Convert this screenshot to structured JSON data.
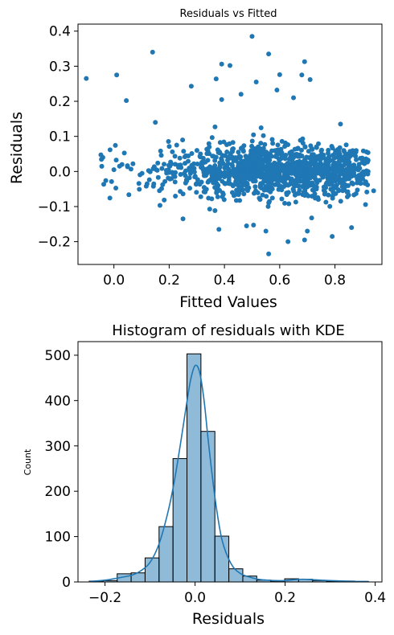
{
  "chart_data": [
    {
      "type": "scatter",
      "title": "Residuals vs Fitted",
      "xlabel": "Fitted Values",
      "ylabel": "Residuals",
      "xlim": [
        -0.13,
        0.97
      ],
      "ylim": [
        -0.265,
        0.42
      ],
      "xticks": [
        0.0,
        0.2,
        0.4,
        0.6,
        0.8
      ],
      "xtick_labels": [
        "0.0",
        "0.2",
        "0.4",
        "0.6",
        "0.8"
      ],
      "yticks": [
        -0.2,
        -0.1,
        0.0,
        0.1,
        0.2,
        0.3,
        0.4
      ],
      "ytick_labels": [
        "−0.2",
        "−0.1",
        "0.0",
        "0.1",
        "0.2",
        "0.3",
        "0.4"
      ],
      "grid": false,
      "color": "#1f77b4",
      "notable_points": [
        {
          "x": -0.1,
          "y": 0.265
        },
        {
          "x": 0.01,
          "y": 0.275
        },
        {
          "x": 0.045,
          "y": 0.202
        },
        {
          "x": 0.14,
          "y": 0.34
        },
        {
          "x": 0.28,
          "y": 0.243
        },
        {
          "x": 0.37,
          "y": 0.264
        },
        {
          "x": 0.39,
          "y": 0.306
        },
        {
          "x": 0.42,
          "y": 0.302
        },
        {
          "x": 0.5,
          "y": 0.385
        },
        {
          "x": 0.56,
          "y": 0.335
        },
        {
          "x": 0.69,
          "y": 0.313
        },
        {
          "x": 0.68,
          "y": 0.275
        },
        {
          "x": 0.71,
          "y": 0.262
        },
        {
          "x": 0.6,
          "y": 0.276
        },
        {
          "x": 0.46,
          "y": 0.22
        },
        {
          "x": 0.515,
          "y": 0.255
        },
        {
          "x": 0.59,
          "y": 0.232
        },
        {
          "x": 0.65,
          "y": 0.21
        },
        {
          "x": 0.39,
          "y": 0.205
        },
        {
          "x": 0.15,
          "y": 0.14
        },
        {
          "x": 0.82,
          "y": 0.135
        },
        {
          "x": 0.56,
          "y": -0.235
        },
        {
          "x": 0.63,
          "y": -0.2
        },
        {
          "x": 0.69,
          "y": -0.195
        },
        {
          "x": 0.55,
          "y": -0.17
        },
        {
          "x": 0.7,
          "y": -0.17
        },
        {
          "x": 0.38,
          "y": -0.165
        },
        {
          "x": 0.79,
          "y": -0.185
        },
        {
          "x": 0.86,
          "y": -0.16
        },
        {
          "x": 0.48,
          "y": -0.155
        },
        {
          "x": 0.25,
          "y": -0.135
        },
        {
          "x": 0.12,
          "y": -0.035
        },
        {
          "x": -0.04,
          "y": 0.04
        },
        {
          "x": 0.0,
          "y": 0.005
        },
        {
          "x": 0.94,
          "y": -0.055
        },
        {
          "x": 0.92,
          "y": 0.0
        }
      ],
      "cloud": {
        "n": 1240,
        "x_center": 0.62,
        "x_spread": 0.2,
        "x_range": [
          -0.08,
          0.92
        ],
        "y_sd": 0.038
      }
    },
    {
      "type": "bar",
      "subtype": "histogram_with_kde",
      "title": "Histogram of residuals with KDE",
      "xlabel": "Residuals",
      "ylabel": "Count",
      "xlim": [
        -0.26,
        0.415
      ],
      "ylim": [
        0,
        530
      ],
      "xticks": [
        -0.2,
        0.0,
        0.2,
        0.4
      ],
      "xtick_labels": [
        "−0.2",
        "0.0",
        "0.2",
        "0.4"
      ],
      "yticks": [
        0,
        100,
        200,
        300,
        400,
        500
      ],
      "ytick_labels": [
        "0",
        "100",
        "200",
        "300",
        "400",
        "500"
      ],
      "grid": false,
      "bin_edges": [
        -0.235,
        -0.204,
        -0.173,
        -0.142,
        -0.111,
        -0.08,
        -0.049,
        -0.018,
        0.013,
        0.044,
        0.075,
        0.106,
        0.137,
        0.168,
        0.199,
        0.23,
        0.261,
        0.292,
        0.323,
        0.354,
        0.385
      ],
      "counts": [
        2,
        3,
        18,
        20,
        53,
        122,
        272,
        503,
        332,
        101,
        29,
        13,
        4,
        2,
        7,
        6,
        3,
        1,
        2,
        1
      ],
      "kde": {
        "x": [
          -0.235,
          -0.2,
          -0.17,
          -0.14,
          -0.12,
          -0.1,
          -0.08,
          -0.06,
          -0.045,
          -0.03,
          -0.02,
          -0.01,
          0.0,
          0.01,
          0.02,
          0.03,
          0.045,
          0.06,
          0.08,
          0.1,
          0.12,
          0.14,
          0.16,
          0.18,
          0.2,
          0.22,
          0.24,
          0.26,
          0.28,
          0.3,
          0.33,
          0.36,
          0.385
        ],
        "y": [
          1,
          4,
          9,
          15,
          25,
          43,
          84,
          155,
          228,
          320,
          385,
          445,
          477,
          463,
          400,
          305,
          180,
          92,
          40,
          19,
          11,
          6,
          4,
          3,
          3,
          5,
          6,
          5,
          4,
          3,
          2,
          1,
          1
        ]
      },
      "bar_color": "#1f77b4",
      "line_color": "#1f77b4"
    }
  ]
}
